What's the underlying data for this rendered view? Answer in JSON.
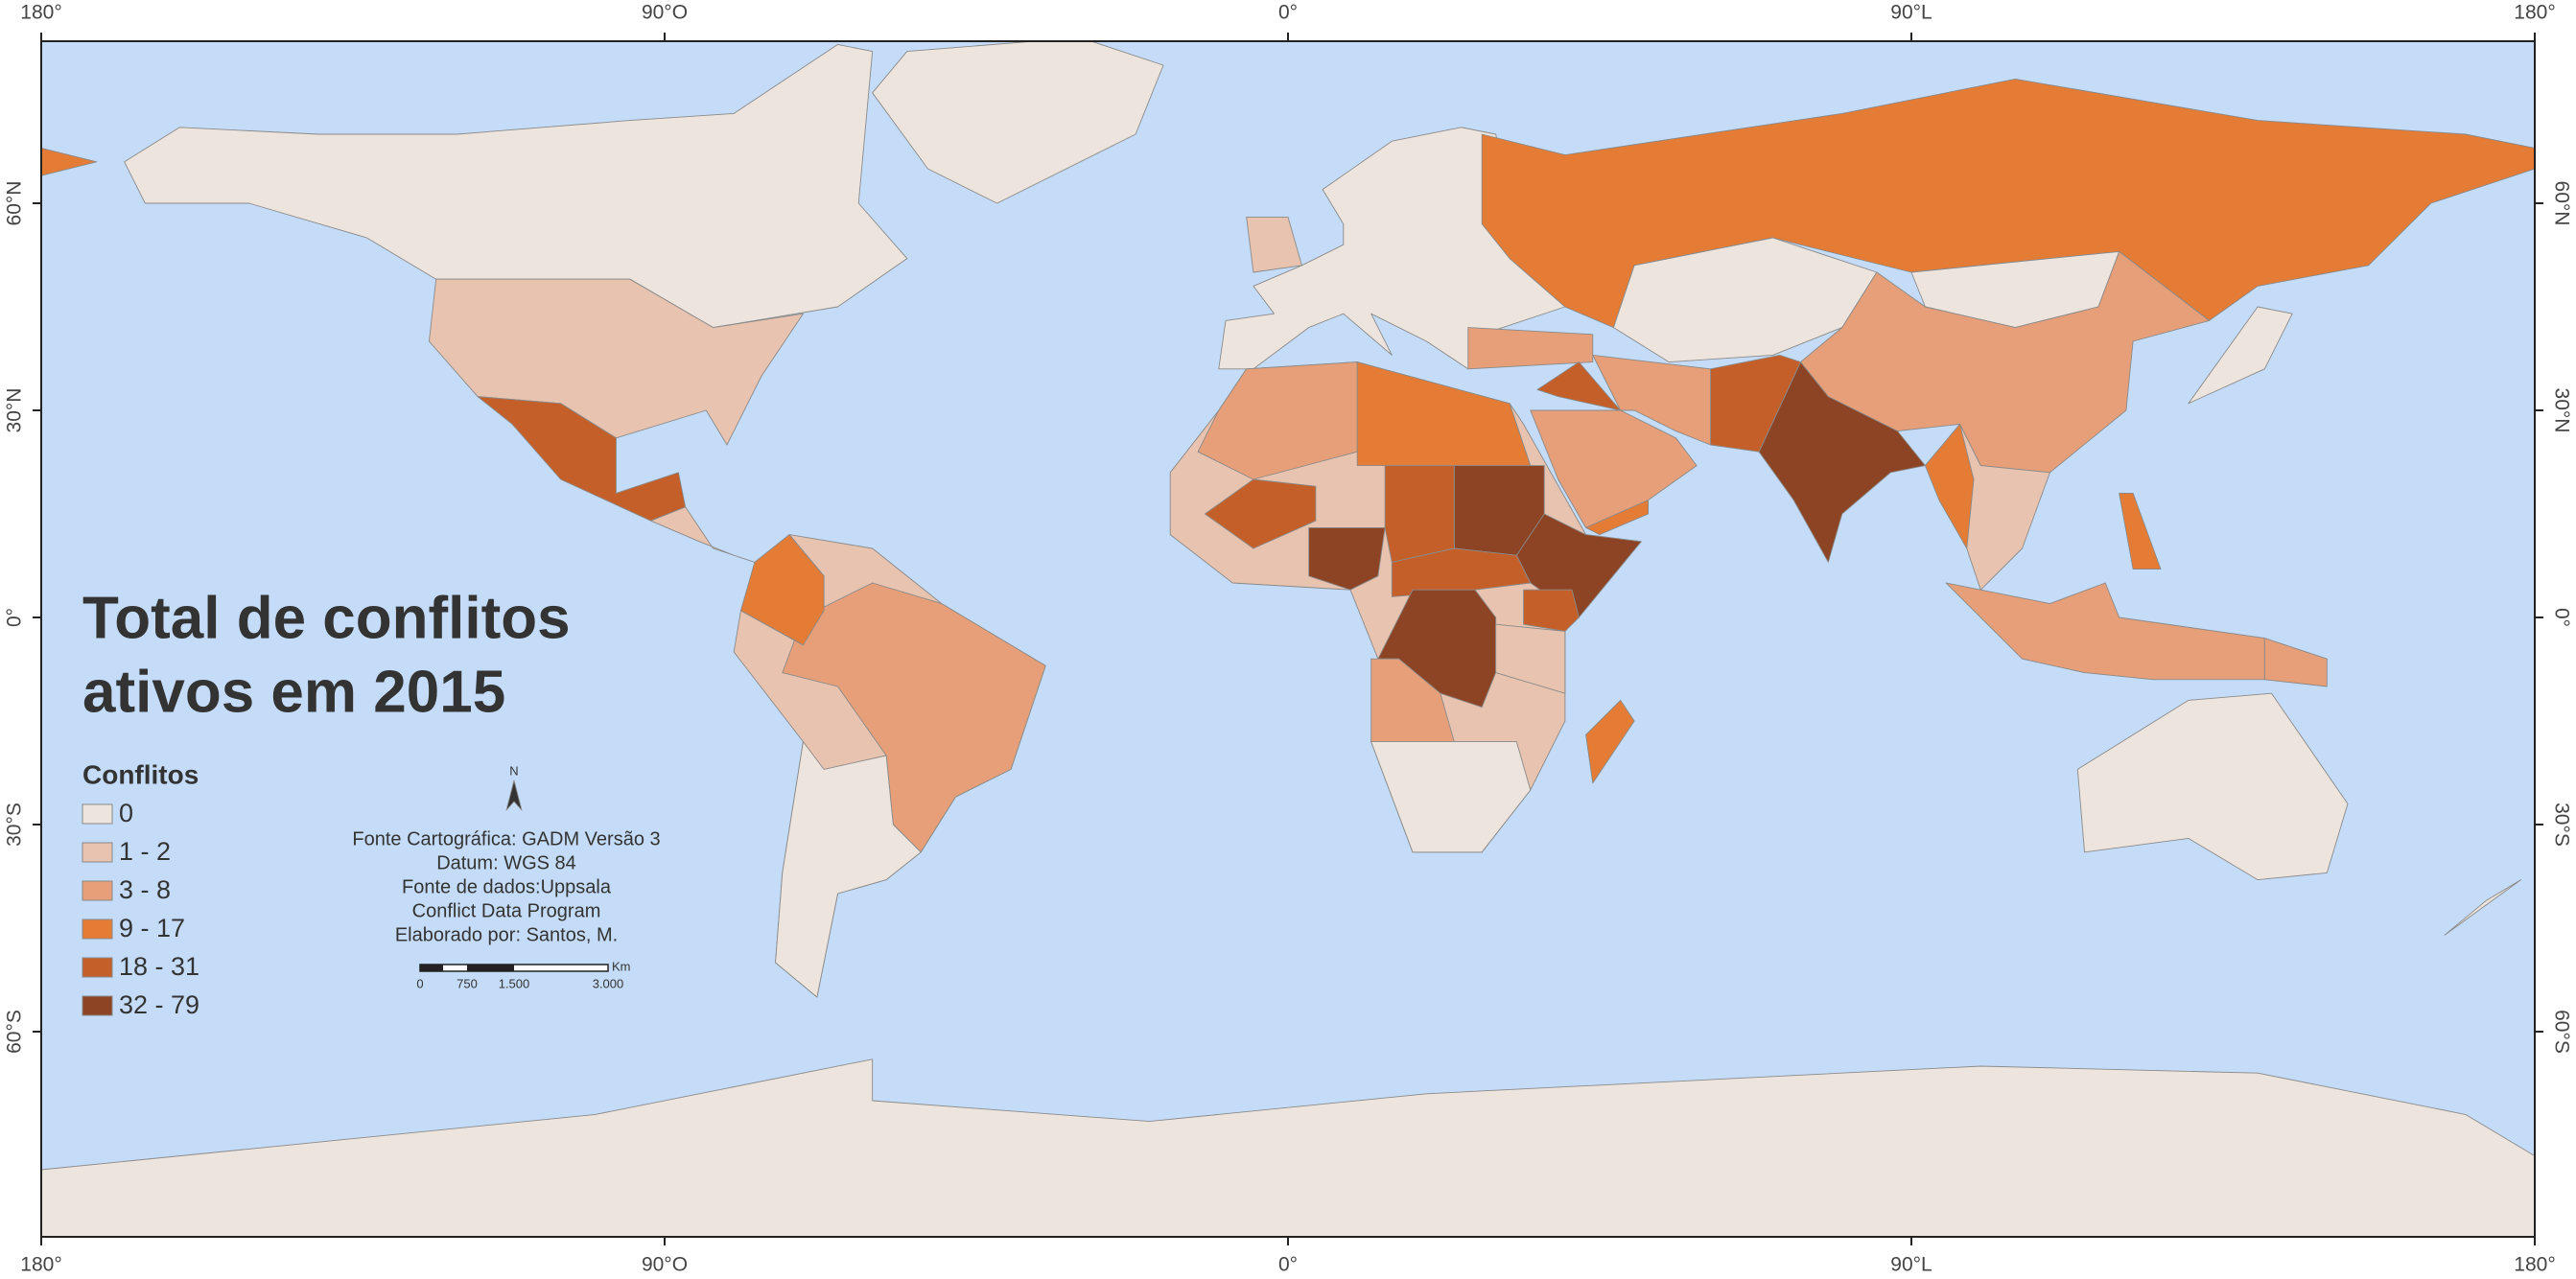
{
  "title": [
    "Total de conflitos",
    "ativos em 2015"
  ],
  "legend": {
    "title": "Conflitos",
    "items": [
      {
        "label": "0",
        "color": "#ede4dd"
      },
      {
        "label": "1 - 2",
        "color": "#e8c3af"
      },
      {
        "label": "3 - 8",
        "color": "#e69f78"
      },
      {
        "label": "9 - 17",
        "color": "#e47c36"
      },
      {
        "label": "18 - 31",
        "color": "#c55f29"
      },
      {
        "label": "32 - 79",
        "color": "#8c4424"
      }
    ]
  },
  "credits": [
    "Fonte Cartográfica: GADM Versão 3",
    "Datum: WGS 84",
    "Fonte de dados:Uppsala",
    "Conflict Data Program",
    "Elaborado por: Santos, M."
  ],
  "north": "N",
  "scale": {
    "unit": "Km",
    "labels": [
      "0",
      "750",
      "1.500",
      "3.000"
    ]
  },
  "graticule": {
    "lon": [
      "180°",
      "90°O",
      "0°",
      "90°L",
      "180°"
    ],
    "lat": [
      "60°N",
      "30°N",
      "0°",
      "30°S",
      "60°S"
    ]
  }
}
